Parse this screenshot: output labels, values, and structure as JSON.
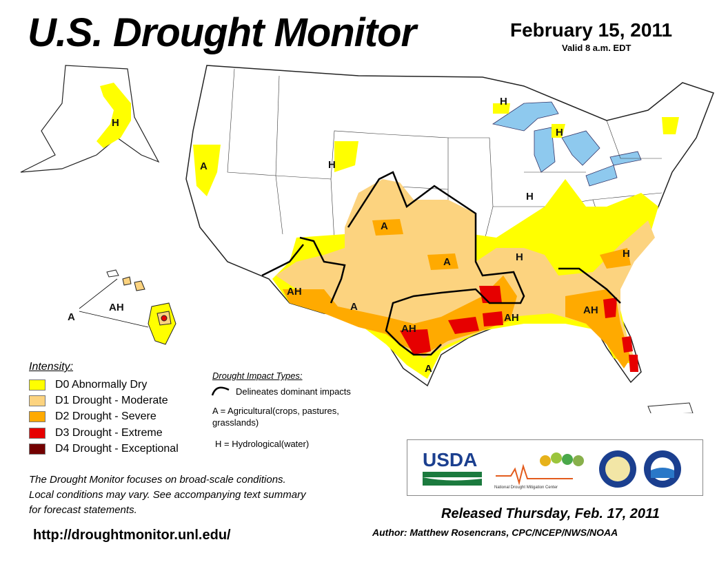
{
  "header": {
    "title": "U.S. Drought Monitor",
    "date": "February 15, 2011",
    "valid": "Valid 8 a.m. EDT"
  },
  "map_labels": {
    "alaska_h": "H",
    "pnw_a": "A",
    "wyoming_h": "H",
    "plains_a": "A",
    "kansas_a": "A",
    "sw_ah": "AH",
    "nm_a": "A",
    "texas_ah": "AH",
    "texas_coast_a": "A",
    "lakes_h1": "H",
    "lakes_h2": "H",
    "illinois_h": "H",
    "tennessee_h": "H",
    "carolina_h": "H",
    "miss_ah": "AH",
    "georgia_ah": "AH",
    "hawaii_ah": "AH",
    "hawaii_a": "A"
  },
  "legend": {
    "heading": "Intensity:",
    "items": [
      {
        "label": "D0 Abnormally Dry",
        "color": "#ffff00"
      },
      {
        "label": "D1 Drought - Moderate",
        "color": "#fcd37f"
      },
      {
        "label": "D2 Drought - Severe",
        "color": "#ffaa00"
      },
      {
        "label": "D3 Drought - Extreme",
        "color": "#e60000"
      },
      {
        "label": "D4 Drought - Exceptional",
        "color": "#730000"
      }
    ]
  },
  "impacts": {
    "heading": "Drought Impact Types:",
    "delineates": "Delineates dominant impacts",
    "agricultural_1": "A = Agricultural(crops, pastures,",
    "agricultural_2": "grasslands)",
    "hydrological": "H = Hydrological(water)"
  },
  "focus_note": {
    "line1": "The Drought Monitor focuses on broad-scale conditions.",
    "line2": "Local conditions may vary. See accompanying text summary",
    "line3": "for forecast statements."
  },
  "url": "http://droughtmonitor.unl.edu/",
  "logos": {
    "usda": "USDA",
    "ndmc": "National Drought Mitigation Center"
  },
  "released": "Released Thursday, Feb. 17, 2011",
  "author": "Author: Matthew Rosencrans, CPC/NCEP/NWS/NOAA"
}
